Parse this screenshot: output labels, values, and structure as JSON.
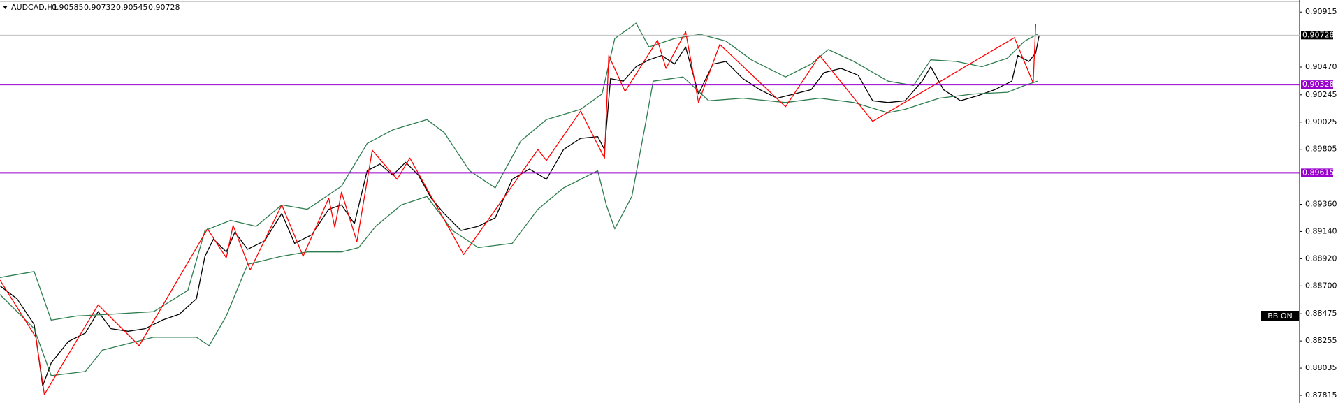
{
  "chart_data": {
    "type": "line",
    "title": "AUDCAD,H1",
    "ohlc": [
      0.90585,
      0.90732,
      0.90545,
      0.90728
    ],
    "xlim": [
      0,
      761
    ],
    "ylim": [
      0.87753,
      0.90984
    ],
    "yticks": [
      0.90915,
      {
        "value": 0.9047,
        "label": "0.90470"
      },
      0.90245,
      0.90025,
      0.89805,
      {
        "value": 0.8936,
        "label": "0.89360"
      },
      {
        "value": 0.8914,
        "label": "0.89140"
      },
      {
        "value": 0.8892,
        "label": "0.88920"
      },
      {
        "value": 0.887,
        "label": "0.88700"
      },
      0.88475,
      0.88255,
      0.88035,
      0.87815
    ],
    "current_price": 0.90728,
    "levels": [
      {
        "value": 0.90328,
        "color": "#9900cc"
      },
      {
        "value": 0.89615,
        "color": "#9900cc"
      }
    ],
    "badge": "BB ON",
    "series": [
      {
        "color": "#000000",
        "x": [
          0,
          10,
          20,
          25,
          30,
          40,
          50,
          57.5,
          65,
          75,
          85,
          95,
          105,
          115,
          120,
          125,
          132.5,
          137.5,
          145,
          155,
          165,
          172.5,
          182.5,
          192.5,
          200,
          207.5,
          215,
          222.5,
          230,
          237.5,
          245,
          252.5,
          260,
          270,
          280,
          290,
          300,
          310,
          320,
          330,
          340,
          350,
          354,
          357.5,
          365,
          372.5,
          380,
          387.5,
          395,
          401.5,
          409,
          417.5,
          425,
          435,
          445,
          455,
          465,
          475,
          482.5,
          492.5,
          502.5,
          511,
          520,
          530,
          540,
          545,
          552.5,
          562.5,
          572.5,
          582.5,
          592.5,
          596,
          602.5,
          606.5,
          608.5
        ],
        "values": [
          0.887,
          0.88596,
          0.88388,
          0.87891,
          0.88077,
          0.8825,
          0.88319,
          0.88492,
          0.88354,
          0.88333,
          0.88354,
          0.88423,
          0.88471,
          0.88596,
          0.8894,
          0.89079,
          0.88975,
          0.89134,
          0.88996,
          0.89065,
          0.89286,
          0.89044,
          0.89113,
          0.8932,
          0.89355,
          0.89203,
          0.89631,
          0.89686,
          0.89596,
          0.897,
          0.89596,
          0.8941,
          0.89286,
          0.89148,
          0.89182,
          0.89251,
          0.89562,
          0.89645,
          0.89562,
          0.89803,
          0.89893,
          0.89907,
          0.89803,
          0.90376,
          0.90356,
          0.90473,
          0.90528,
          0.90563,
          0.90494,
          0.90632,
          0.90252,
          0.90494,
          0.90515,
          0.90376,
          0.90287,
          0.90218,
          0.90252,
          0.90287,
          0.90425,
          0.90459,
          0.90404,
          0.90197,
          0.90183,
          0.90197,
          0.90356,
          0.90473,
          0.90287,
          0.90197,
          0.90238,
          0.90287,
          0.90356,
          0.90563,
          0.90515,
          0.90584,
          0.90728
        ]
      },
      {
        "color": "#2e7d4f",
        "x": [
          0,
          20,
          30,
          45,
          65,
          90,
          110,
          120,
          135,
          150,
          165,
          180,
          200,
          215,
          230,
          250,
          260,
          275,
          290,
          305,
          320,
          340,
          352.5,
          360,
          372.5,
          380,
          395,
          410,
          425,
          440,
          460,
          475,
          485,
          500,
          520,
          535,
          545,
          560,
          575,
          590,
          600,
          607.5
        ],
        "values": [
          0.88768,
          0.88816,
          0.88423,
          0.88457,
          0.88471,
          0.88492,
          0.88664,
          0.89148,
          0.8923,
          0.89182,
          0.89355,
          0.8932,
          0.89507,
          0.89852,
          0.89962,
          0.90045,
          0.89942,
          0.89631,
          0.89493,
          0.89873,
          0.90045,
          0.90128,
          0.90252,
          0.90701,
          0.90825,
          0.90632,
          0.90701,
          0.90735,
          0.9068,
          0.90528,
          0.9039,
          0.90494,
          0.90611,
          0.90515,
          0.90356,
          0.90321,
          0.90528,
          0.90515,
          0.90473,
          0.90542,
          0.9068,
          0.90735
        ]
      },
      {
        "color": "#2e7d4f",
        "x": [
          0,
          20,
          30,
          50,
          60,
          90,
          115,
          122.5,
          132.5,
          145,
          165,
          180,
          200,
          210,
          220,
          235,
          250,
          265,
          280,
          300,
          315,
          330,
          350,
          355,
          360,
          370,
          377.5,
          382.5,
          400,
          415,
          435,
          460,
          480,
          500,
          520,
          530,
          550,
          570,
          590,
          600,
          607.5
        ],
        "values": [
          0.8863,
          0.88354,
          0.87974,
          0.88008,
          0.88181,
          0.88285,
          0.88285,
          0.88216,
          0.88457,
          0.88875,
          0.8894,
          0.88975,
          0.88975,
          0.8901,
          0.89182,
          0.89355,
          0.89424,
          0.89148,
          0.8901,
          0.89044,
          0.8932,
          0.89493,
          0.89631,
          0.89355,
          0.89161,
          0.89424,
          0.89976,
          0.90356,
          0.9039,
          0.90197,
          0.90218,
          0.90183,
          0.90218,
          0.90183,
          0.901,
          0.90128,
          0.90218,
          0.90252,
          0.90266,
          0.90321,
          0.90356
        ]
      },
      {
        "color": "#ff0000",
        "x": [
          0,
          21,
          26,
          57.5,
          81.5,
          121.5,
          132.5,
          136.5,
          146.5,
          165,
          177.5,
          192.5,
          196,
          200,
          209,
          218,
          232.5,
          240,
          271.5,
          315,
          320,
          340,
          354,
          356.5,
          366,
          385,
          390,
          401.5,
          409,
          421.5,
          460,
          480,
          511,
          594,
          605,
          606.5
        ],
        "values": [
          0.88747,
          0.88285,
          0.87822,
          0.88547,
          0.88216,
          0.89161,
          0.88927,
          0.89189,
          0.8883,
          0.89355,
          0.8894,
          0.8941,
          0.89175,
          0.89458,
          0.89058,
          0.89797,
          0.89562,
          0.89734,
          0.88954,
          0.89803,
          0.89714,
          0.90114,
          0.89734,
          0.90563,
          0.90273,
          0.90687,
          0.90459,
          0.90756,
          0.90183,
          0.90653,
          0.90149,
          0.90563,
          0.90031,
          0.90708,
          0.90342,
          0.90818
        ]
      }
    ]
  }
}
